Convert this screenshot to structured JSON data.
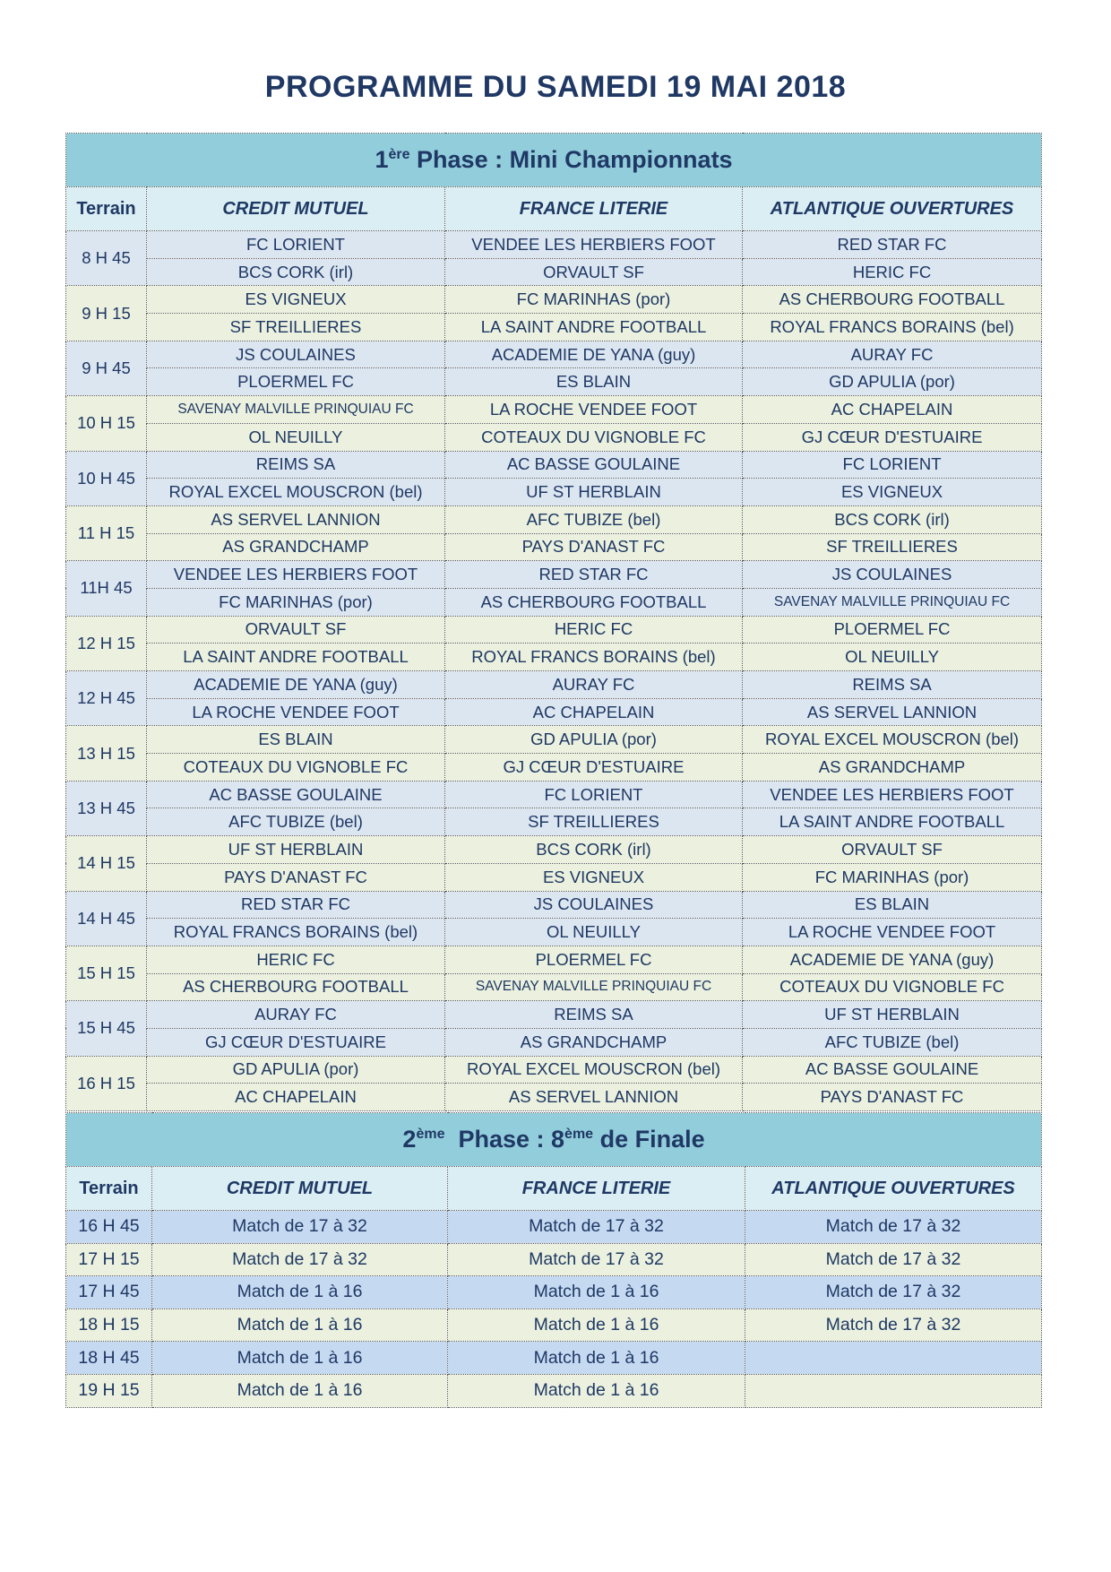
{
  "title": "PROGRAMME DU SAMEDI 19 MAI 2018",
  "phase1": {
    "heading_num": "1",
    "heading_sup": "ère",
    "heading_rest": " Phase : Mini Championnats",
    "columns": [
      "Terrain",
      "CREDIT MUTUEL",
      "FRANCE LITERIE",
      "ATLANTIQUE OUVERTURES"
    ],
    "slots": [
      {
        "time": "8 H 45",
        "rows": [
          [
            "FC LORIENT",
            "VENDEE LES HERBIERS FOOT",
            "RED STAR FC"
          ],
          [
            "BCS CORK (irl)",
            "ORVAULT SF",
            "HERIC FC"
          ]
        ]
      },
      {
        "time": "9 H 15",
        "rows": [
          [
            "ES VIGNEUX",
            "FC MARINHAS (por)",
            "AS CHERBOURG FOOTBALL"
          ],
          [
            "SF TREILLIERES",
            "LA SAINT ANDRE FOOTBALL",
            "ROYAL FRANCS BORAINS (bel)"
          ]
        ]
      },
      {
        "time": "9 H 45",
        "rows": [
          [
            "JS COULAINES",
            "ACADEMIE DE YANA (guy)",
            "AURAY FC"
          ],
          [
            "PLOERMEL FC",
            "ES BLAIN",
            "GD APULIA (por)"
          ]
        ]
      },
      {
        "time": "10 H 15",
        "rows": [
          [
            "SAVENAY MALVILLE PRINQUIAU FC",
            "LA ROCHE VENDEE FOOT",
            "AC CHAPELAIN"
          ],
          [
            "OL NEUILLY",
            "COTEAUX DU VIGNOBLE FC",
            "GJ CŒUR D'ESTUAIRE"
          ]
        ]
      },
      {
        "time": "10 H 45",
        "rows": [
          [
            "REIMS SA",
            "AC BASSE GOULAINE",
            "FC LORIENT"
          ],
          [
            "ROYAL EXCEL MOUSCRON (bel)",
            "UF ST HERBLAIN",
            "ES VIGNEUX"
          ]
        ]
      },
      {
        "time": "11 H 15",
        "rows": [
          [
            "AS SERVEL LANNION",
            "AFC TUBIZE (bel)",
            "BCS CORK (irl)"
          ],
          [
            "AS GRANDCHAMP",
            "PAYS D'ANAST FC",
            "SF TREILLIERES"
          ]
        ]
      },
      {
        "time": "11H 45",
        "rows": [
          [
            "VENDEE LES HERBIERS FOOT",
            "RED STAR FC",
            "JS COULAINES"
          ],
          [
            "FC MARINHAS (por)",
            "AS CHERBOURG FOOTBALL",
            "SAVENAY MALVILLE PRINQUIAU FC"
          ]
        ]
      },
      {
        "time": "12 H 15",
        "rows": [
          [
            "ORVAULT SF",
            "HERIC FC",
            "PLOERMEL FC"
          ],
          [
            "LA SAINT ANDRE FOOTBALL",
            "ROYAL FRANCS BORAINS (bel)",
            "OL NEUILLY"
          ]
        ]
      },
      {
        "time": "12 H 45",
        "rows": [
          [
            "ACADEMIE DE YANA (guy)",
            "AURAY FC",
            "REIMS SA"
          ],
          [
            "LA ROCHE VENDEE FOOT",
            "AC CHAPELAIN",
            "AS SERVEL LANNION"
          ]
        ]
      },
      {
        "time": "13 H 15",
        "rows": [
          [
            "ES BLAIN",
            "GD APULIA (por)",
            "ROYAL EXCEL MOUSCRON (bel)"
          ],
          [
            "COTEAUX DU VIGNOBLE FC",
            "GJ CŒUR D'ESTUAIRE",
            "AS GRANDCHAMP"
          ]
        ]
      },
      {
        "time": "13 H 45",
        "rows": [
          [
            "AC BASSE GOULAINE",
            "FC LORIENT",
            "VENDEE LES HERBIERS FOOT"
          ],
          [
            "AFC TUBIZE (bel)",
            "SF TREILLIERES",
            "LA SAINT ANDRE FOOTBALL"
          ]
        ]
      },
      {
        "time": "14 H 15",
        "rows": [
          [
            "UF ST HERBLAIN",
            "BCS CORK (irl)",
            "ORVAULT SF"
          ],
          [
            "PAYS D'ANAST FC",
            "ES VIGNEUX",
            "FC MARINHAS (por)"
          ]
        ]
      },
      {
        "time": "14 H 45",
        "rows": [
          [
            "RED STAR FC",
            "JS COULAINES",
            "ES BLAIN"
          ],
          [
            "ROYAL FRANCS BORAINS (bel)",
            "OL NEUILLY",
            "LA ROCHE VENDEE FOOT"
          ]
        ]
      },
      {
        "time": "15 H 15",
        "rows": [
          [
            "HERIC FC",
            "PLOERMEL FC",
            "ACADEMIE DE YANA (guy)"
          ],
          [
            "AS CHERBOURG FOOTBALL",
            "SAVENAY MALVILLE PRINQUIAU FC",
            "COTEAUX DU VIGNOBLE FC"
          ]
        ]
      },
      {
        "time": "15 H 45",
        "rows": [
          [
            "AURAY FC",
            "REIMS SA",
            "UF ST HERBLAIN"
          ],
          [
            "GJ CŒUR D'ESTUAIRE",
            "AS GRANDCHAMP",
            "AFC TUBIZE (bel)"
          ]
        ]
      },
      {
        "time": "16 H 15",
        "rows": [
          [
            "GD APULIA (por)",
            "ROYAL EXCEL MOUSCRON (bel)",
            "AC BASSE GOULAINE"
          ],
          [
            "AC CHAPELAIN",
            "AS SERVEL LANNION",
            "PAYS D'ANAST FC"
          ]
        ]
      }
    ]
  },
  "phase2": {
    "heading_num": "2",
    "heading_sup": "ème",
    "heading_mid": "  Phase : 8",
    "heading_sup2": "ème",
    "heading_rest": " de Finale",
    "columns": [
      "Terrain",
      "CREDIT MUTUEL",
      "FRANCE LITERIE",
      "ATLANTIQUE OUVERTURES"
    ],
    "rows": [
      {
        "time": "16 H 45",
        "cells": [
          "Match de 17 à 32",
          "Match de 17 à 32",
          "Match de 17 à 32"
        ]
      },
      {
        "time": "17 H 15",
        "cells": [
          "Match de 17 à 32",
          "Match de 17 à 32",
          "Match de 17 à 32"
        ]
      },
      {
        "time": "17 H 45",
        "cells": [
          "Match de 1 à 16",
          "Match de 1 à 16",
          "Match de 17 à 32"
        ]
      },
      {
        "time": "18 H 15",
        "cells": [
          "Match de 1 à 16",
          "Match de 1 à 16",
          "Match de 17 à 32"
        ]
      },
      {
        "time": "18 H 45",
        "cells": [
          "Match de 1 à 16",
          "Match de 1 à 16",
          ""
        ]
      },
      {
        "time": "19 H 15",
        "cells": [
          "Match de 1 à 16",
          "Match de 1 à 16",
          ""
        ]
      }
    ]
  },
  "colors": {
    "text": "#1f3864",
    "phase_header": "#92cddc",
    "column_header": "#daeef3",
    "row_blue": "#dce6f1",
    "row_blue_phase2": "#c5d9f1",
    "row_green": "#ebf1de"
  }
}
